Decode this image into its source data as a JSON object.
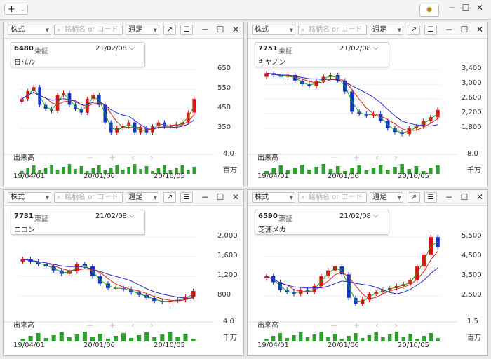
{
  "toolbar": {
    "add_label": "+",
    "add_chevron": "⌄",
    "settings_icon": "gear-icon",
    "min": "−",
    "max": "☐",
    "close": "✕"
  },
  "panel_controls": {
    "link_icon": "↗",
    "menu_icon": "☰",
    "min": "−",
    "max": "☐",
    "close": "✕"
  },
  "panels": [
    {
      "market": "株式",
      "search_placeholder": "銘柄名 or コード",
      "period": "週足",
      "code": "6480",
      "exchange": "東証",
      "date": "21/02/08",
      "name": "日ﾄﾑｿﾝ",
      "y_ticks": [
        "650",
        "550",
        "450",
        "350"
      ],
      "volume_label": "出来高",
      "volume_max": "4.0",
      "volume_unit": "百万",
      "x_ticks": [
        "19/04/01",
        "20/01/06",
        "20/10/05"
      ]
    },
    {
      "market": "株式",
      "search_placeholder": "銘柄名 or コード",
      "period": "週足",
      "code": "7751",
      "exchange": "東証",
      "date": "21/02/08",
      "name": "キヤノン",
      "y_ticks": [
        "3,400",
        "3,000",
        "2,600",
        "2,200",
        "1,800"
      ],
      "volume_label": "出来高",
      "volume_max": "8.0",
      "volume_unit": "千万",
      "x_ticks": [
        "19/04/01",
        "20/01/06",
        "20/10/05"
      ]
    },
    {
      "market": "株式",
      "search_placeholder": "銘柄名 or コード",
      "period": "週足",
      "code": "7731",
      "exchange": "東証",
      "date": "21/02/08",
      "name": "ニコン",
      "y_ticks": [
        "2,000",
        "1,600",
        "1,200",
        "800"
      ],
      "volume_label": "出来高",
      "volume_max": "4.0",
      "volume_unit": "千万",
      "x_ticks": [
        "19/04/01",
        "20/01/06",
        "20/10/05"
      ]
    },
    {
      "market": "株式",
      "search_placeholder": "銘柄名 or コード",
      "period": "週足",
      "code": "6590",
      "exchange": "東証",
      "date": "21/02/08",
      "name": "芝浦メカ",
      "y_ticks": [
        "5,500",
        "4,500",
        "3,500",
        "2,500"
      ],
      "volume_label": "出来高",
      "volume_max": "1.5",
      "volume_unit": "百万",
      "x_ticks": [
        "19/04/01",
        "20/01/06",
        "20/10/05"
      ]
    }
  ],
  "chart_nav": {
    "minus": "−",
    "plus": "+",
    "left": "‹",
    "right": "›"
  },
  "chart_data": [
    {
      "type": "candlestick",
      "code": "6480",
      "y_ticks": [
        650,
        550,
        450,
        350
      ],
      "close": [
        500,
        540,
        560,
        470,
        450,
        440,
        520,
        530,
        470,
        450,
        430,
        500,
        520,
        470,
        380,
        330,
        350,
        360,
        380,
        330,
        350,
        330,
        360,
        380,
        360,
        360,
        370,
        380,
        430,
        500
      ],
      "up_color": "#dd1111",
      "down_color": "#1133cc",
      "ma_short_color": "#1aa01a",
      "ma_mid_color": "#dd2222",
      "ma_long_color": "#2a2ad0"
    },
    {
      "type": "candlestick",
      "code": "7751",
      "y_ticks": [
        3400,
        3000,
        2600,
        2200,
        1800
      ],
      "close": [
        3300,
        3250,
        3200,
        3250,
        3100,
        3000,
        2950,
        3100,
        3200,
        3250,
        3100,
        2800,
        2250,
        2200,
        2150,
        2200,
        2000,
        1800,
        1700,
        1650,
        1800,
        1850,
        2000,
        2100,
        2300
      ],
      "up_color": "#dd1111",
      "down_color": "#1133cc",
      "ma_short_color": "#1aa01a",
      "ma_mid_color": "#dd2222",
      "ma_long_color": "#2a2ad0"
    },
    {
      "type": "candlestick",
      "code": "7731",
      "y_ticks": [
        2000,
        1600,
        1200,
        800
      ],
      "close": [
        1550,
        1500,
        1450,
        1400,
        1320,
        1250,
        1300,
        1450,
        1400,
        1200,
        1050,
        960,
        960,
        940,
        870,
        820,
        760,
        700,
        680,
        700,
        720,
        780,
        900
      ],
      "up_color": "#dd1111",
      "down_color": "#1133cc",
      "ma_short_color": "#1aa01a",
      "ma_mid_color": "#dd2222",
      "ma_long_color": "#2a2ad0"
    },
    {
      "type": "candlestick",
      "code": "6590",
      "y_ticks": [
        5500,
        4500,
        3500,
        2500
      ],
      "close": [
        3500,
        3200,
        2800,
        2700,
        2600,
        2800,
        2700,
        3000,
        3500,
        3800,
        4000,
        3600,
        2400,
        2100,
        2300,
        2600,
        2700,
        2800,
        2900,
        3000,
        3100,
        3300,
        4000,
        4600,
        5500,
        5000
      ],
      "up_color": "#dd1111",
      "down_color": "#1133cc",
      "ma_short_color": "#1aa01a",
      "ma_mid_color": "#dd2222",
      "ma_long_color": "#2a2ad0"
    }
  ]
}
